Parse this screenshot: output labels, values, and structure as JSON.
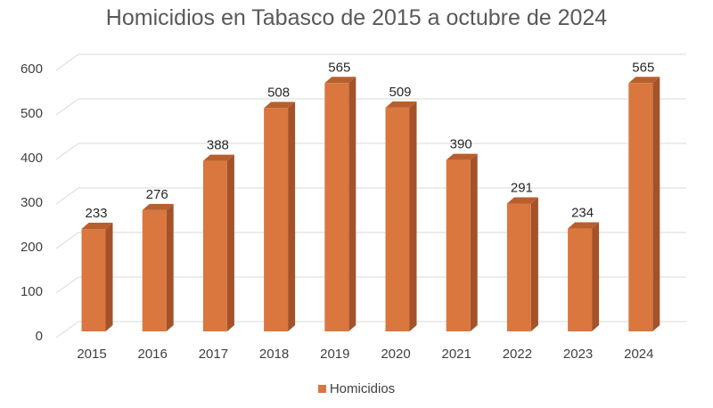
{
  "chart_data": {
    "type": "bar",
    "title": "Homicidios en Tabasco de 2015 a octubre de 2024",
    "categories": [
      "2015",
      "2016",
      "2017",
      "2018",
      "2019",
      "2020",
      "2021",
      "2022",
      "2023",
      "2024"
    ],
    "series": [
      {
        "name": "Homicidios",
        "values": [
          233,
          276,
          388,
          508,
          565,
          509,
          390,
          291,
          234,
          565
        ]
      }
    ],
    "ylim": [
      0,
      600
    ],
    "yticks": [
      "0",
      "100",
      "200",
      "300",
      "400",
      "500",
      "600"
    ],
    "xlabel": "",
    "ylabel": "",
    "grid": true,
    "legend": "bottom",
    "colors": {
      "front": "#D9773F",
      "side": "#A4522A",
      "top": "#B85F2E"
    }
  }
}
